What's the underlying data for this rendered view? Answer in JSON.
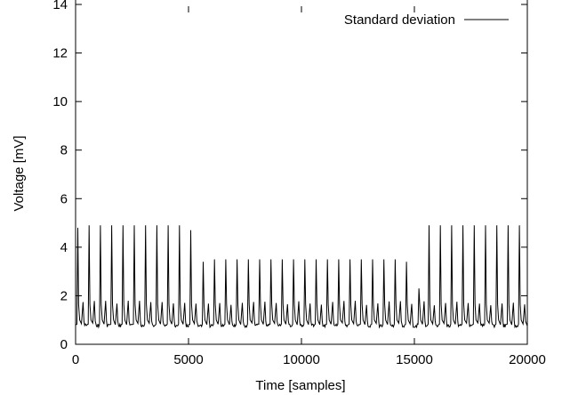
{
  "chart_data": {
    "type": "line",
    "title": "",
    "xlabel": "Time [samples]",
    "ylabel": "Voltage [mV]",
    "xlim": [
      0,
      20000
    ],
    "ylim": [
      0,
      14
    ],
    "x_ticks": [
      0,
      5000,
      10000,
      15000,
      20000
    ],
    "y_ticks": [
      0,
      2,
      4,
      6,
      8,
      10,
      12,
      14
    ],
    "x_tick_labels": [
      "0",
      "5000",
      "10000",
      "15000",
      "20000"
    ],
    "y_tick_labels": [
      "0",
      "2",
      "4",
      "6",
      "8",
      "10",
      "12",
      "14"
    ],
    "grid": false,
    "legend": "top-right",
    "series": [
      {
        "name": "Standard deviation",
        "color": "#000000",
        "baseline": 0.75,
        "secondary_peak": 1.8,
        "peaks": [
          {
            "x": 100,
            "y": 4.8
          },
          {
            "x": 600,
            "y": 4.9
          },
          {
            "x": 1100,
            "y": 4.9
          },
          {
            "x": 1600,
            "y": 4.9
          },
          {
            "x": 2100,
            "y": 4.9
          },
          {
            "x": 2600,
            "y": 4.9
          },
          {
            "x": 3100,
            "y": 4.9
          },
          {
            "x": 3600,
            "y": 4.9
          },
          {
            "x": 4100,
            "y": 4.9
          },
          {
            "x": 4600,
            "y": 4.9
          },
          {
            "x": 5100,
            "y": 4.7
          },
          {
            "x": 5650,
            "y": 3.4
          },
          {
            "x": 6150,
            "y": 3.5
          },
          {
            "x": 6650,
            "y": 3.5
          },
          {
            "x": 7150,
            "y": 3.5
          },
          {
            "x": 7650,
            "y": 3.5
          },
          {
            "x": 8150,
            "y": 3.5
          },
          {
            "x": 8650,
            "y": 3.5
          },
          {
            "x": 9150,
            "y": 3.5
          },
          {
            "x": 9650,
            "y": 3.5
          },
          {
            "x": 10150,
            "y": 3.5
          },
          {
            "x": 10650,
            "y": 3.5
          },
          {
            "x": 11150,
            "y": 3.5
          },
          {
            "x": 11650,
            "y": 3.5
          },
          {
            "x": 12150,
            "y": 3.5
          },
          {
            "x": 12650,
            "y": 3.5
          },
          {
            "x": 13150,
            "y": 3.5
          },
          {
            "x": 13650,
            "y": 3.5
          },
          {
            "x": 14150,
            "y": 3.5
          },
          {
            "x": 14650,
            "y": 3.4
          },
          {
            "x": 15200,
            "y": 2.3
          },
          {
            "x": 15650,
            "y": 4.9
          },
          {
            "x": 16150,
            "y": 4.9
          },
          {
            "x": 16650,
            "y": 4.9
          },
          {
            "x": 17150,
            "y": 4.9
          },
          {
            "x": 17650,
            "y": 4.9
          },
          {
            "x": 18150,
            "y": 4.9
          },
          {
            "x": 18650,
            "y": 4.9
          },
          {
            "x": 19150,
            "y": 4.9
          },
          {
            "x": 19650,
            "y": 4.9
          }
        ]
      }
    ]
  }
}
